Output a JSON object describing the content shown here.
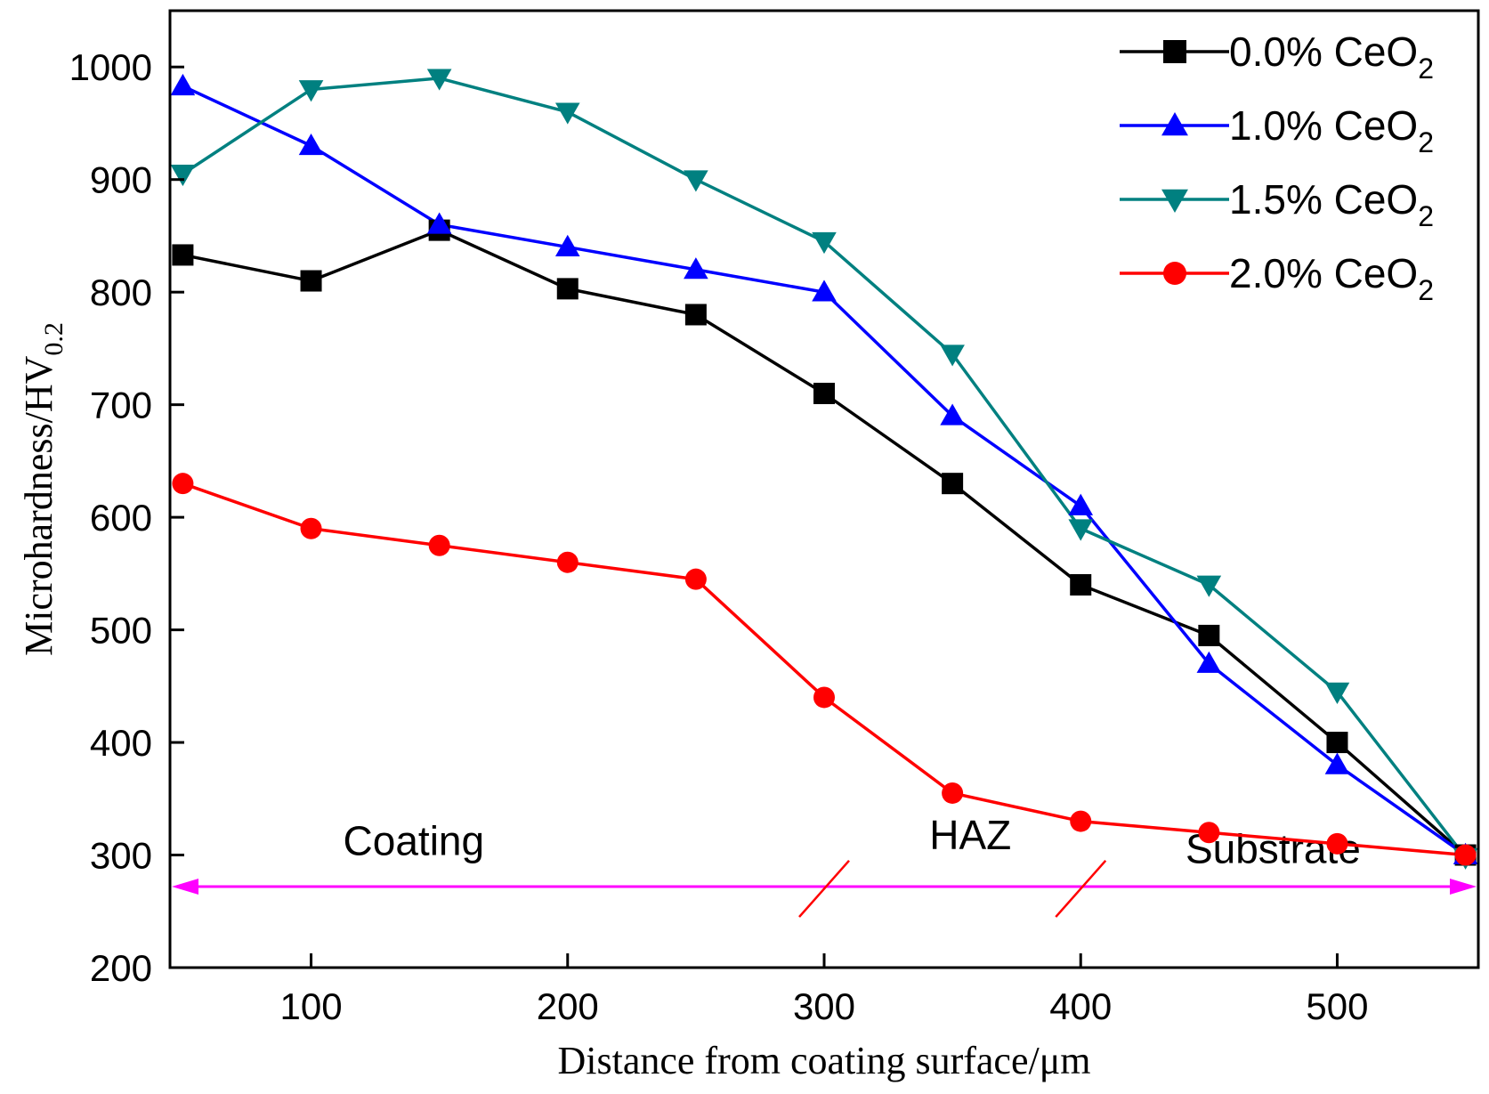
{
  "chart_data": {
    "type": "line",
    "title": "",
    "xlabel": "Distance from coating surface/μm",
    "ylabel": "Microhardness/HV",
    "ylabel_subscript": "0.2",
    "xlim": [
      45,
      555
    ],
    "ylim": [
      200,
      1050
    ],
    "xticks": [
      100,
      200,
      300,
      400,
      500
    ],
    "yticks": [
      200,
      300,
      400,
      500,
      600,
      700,
      800,
      900,
      1000
    ],
    "grid": false,
    "legend_position": "top-right",
    "series": [
      {
        "name": "0.0% CeO",
        "subscript": "2",
        "color": "#000000",
        "marker": "square",
        "x": [
          50,
          100,
          150,
          200,
          250,
          300,
          350,
          400,
          450,
          500,
          550
        ],
        "y": [
          833,
          810,
          855,
          803,
          780,
          710,
          630,
          540,
          495,
          400,
          300
        ]
      },
      {
        "name": "1.0% CeO",
        "subscript": "2",
        "color": "#0000ff",
        "marker": "triangle-up",
        "x": [
          50,
          100,
          150,
          200,
          250,
          300,
          350,
          400,
          450,
          500,
          550
        ],
        "y": [
          983,
          930,
          860,
          840,
          820,
          800,
          690,
          610,
          470,
          380,
          300
        ]
      },
      {
        "name": "1.5% CeO",
        "subscript": "2",
        "color": "#008080",
        "marker": "triangle-down",
        "x": [
          50,
          100,
          150,
          200,
          250,
          300,
          350,
          400,
          450,
          500,
          550
        ],
        "y": [
          905,
          980,
          990,
          960,
          900,
          845,
          745,
          590,
          540,
          445,
          298
        ]
      },
      {
        "name": "2.0% CeO",
        "subscript": "2",
        "color": "#ff0000",
        "marker": "circle",
        "x": [
          50,
          100,
          150,
          200,
          250,
          300,
          350,
          400,
          450,
          500,
          550
        ],
        "y": [
          630,
          590,
          575,
          560,
          545,
          440,
          355,
          330,
          320,
          310,
          300
        ]
      }
    ],
    "annotations": {
      "regions": [
        {
          "label": "Coating",
          "x": 140,
          "y": 300
        },
        {
          "label": "HAZ",
          "x": 357,
          "y": 305
        },
        {
          "label": "Substrate",
          "x": 475,
          "y": 293
        }
      ],
      "arrow": {
        "from_x": 45,
        "to_x": 555,
        "y": 272,
        "color": "#ff00ff"
      },
      "boundaries": [
        {
          "x": 300,
          "y_low": 245,
          "y_high": 295,
          "color": "#ff0000"
        },
        {
          "x": 400,
          "y_low": 245,
          "y_high": 295,
          "color": "#ff0000"
        }
      ]
    }
  }
}
